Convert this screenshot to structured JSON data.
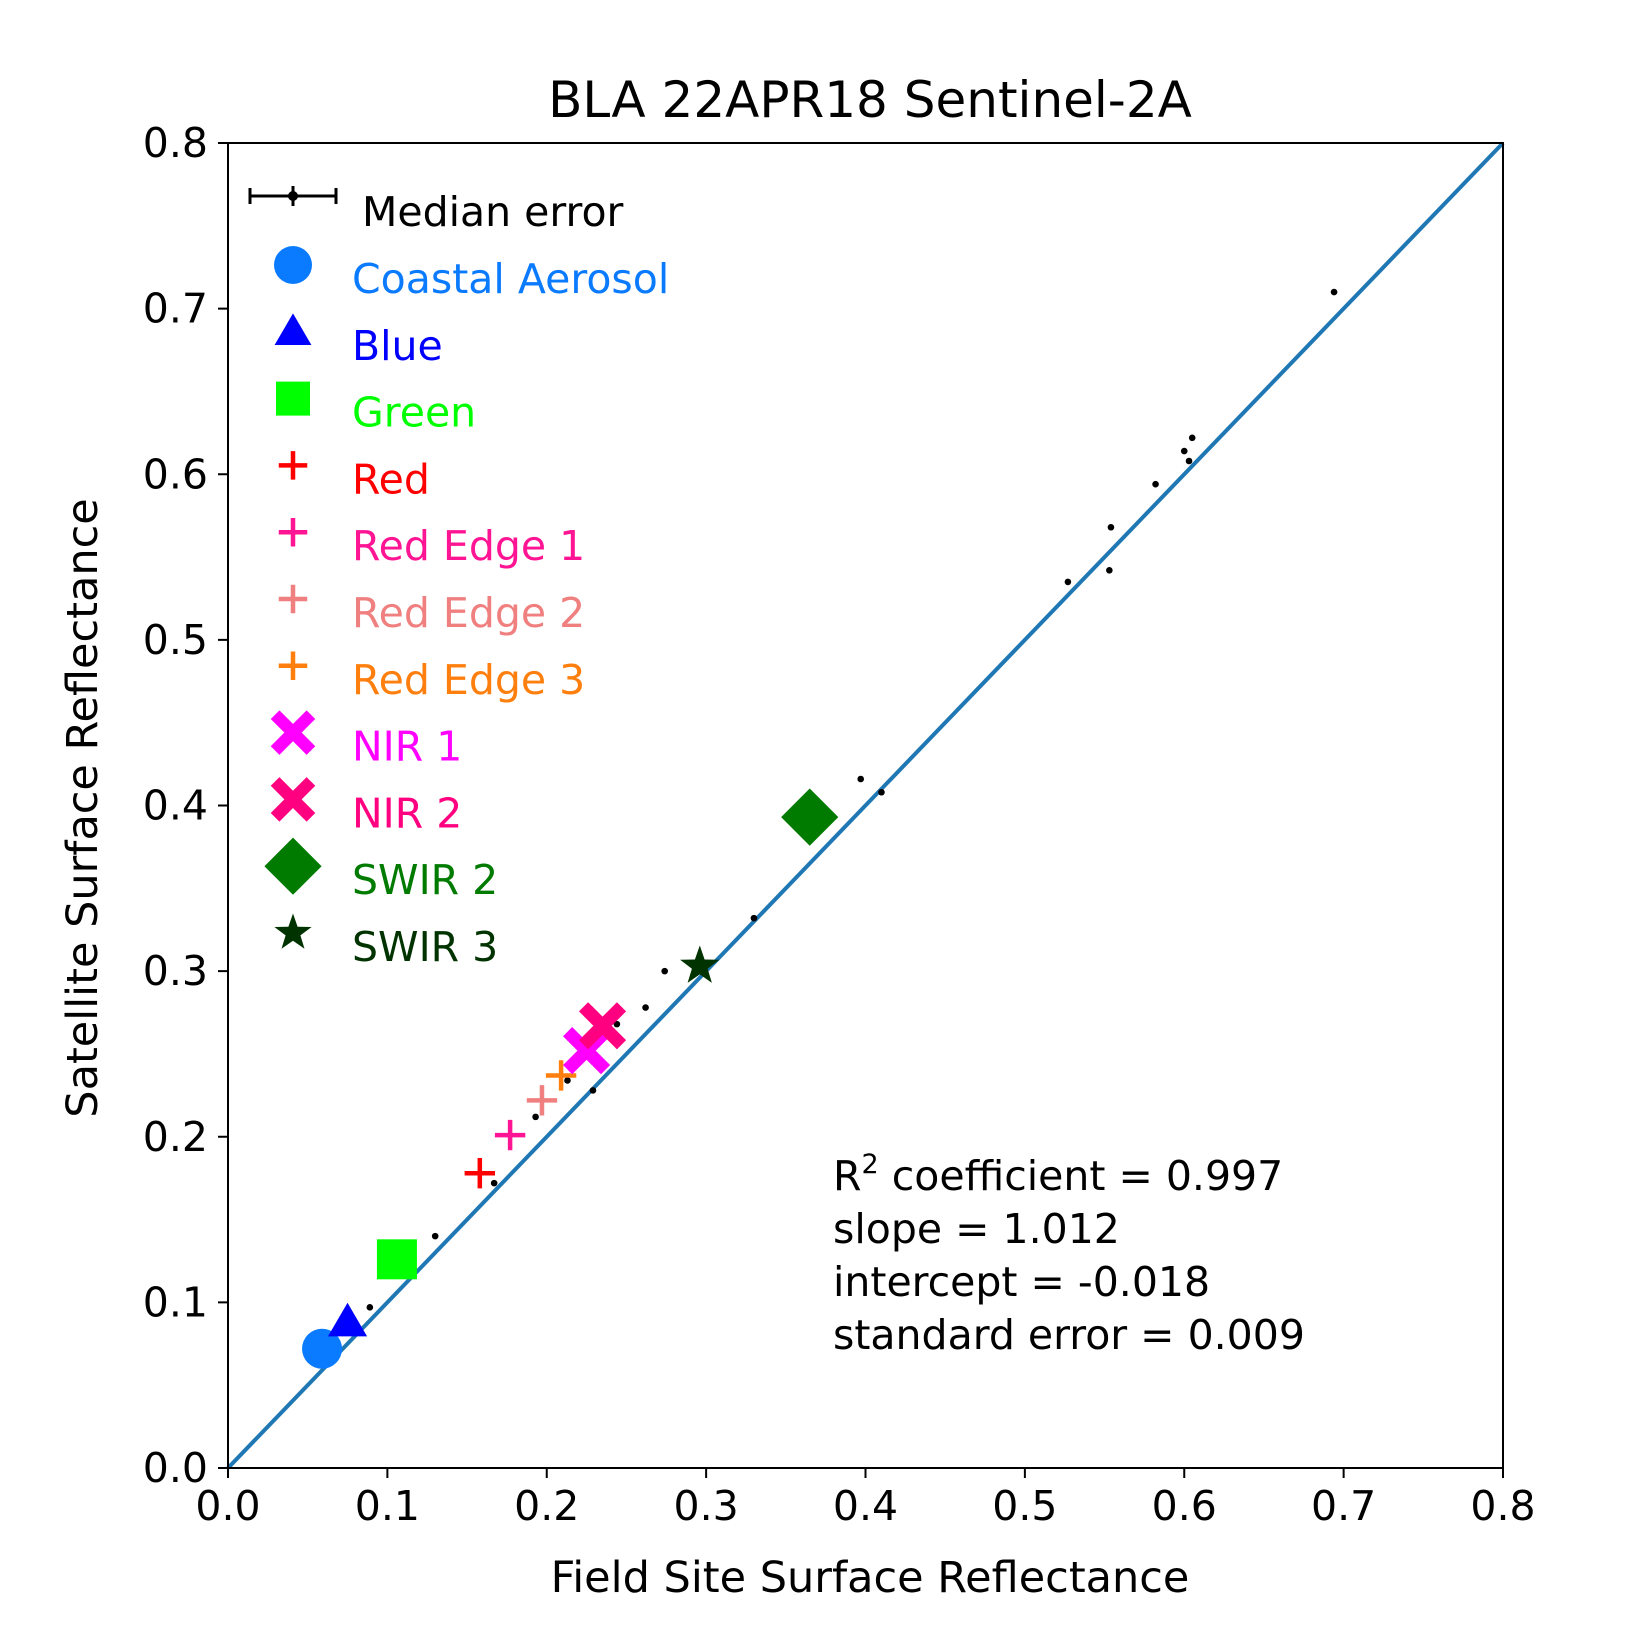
{
  "chart_data": {
    "type": "scatter",
    "title": "BLA 22APR18 Sentinel-2A",
    "xlabel": "Field Site Surface Reflectance",
    "ylabel": "Satellite Surface Reflectance",
    "xlim": [
      0.0,
      0.8
    ],
    "ylim": [
      0.0,
      0.8
    ],
    "xticks": [
      "0.0",
      "0.1",
      "0.2",
      "0.3",
      "0.4",
      "0.5",
      "0.6",
      "0.7",
      "0.8"
    ],
    "yticks": [
      "0.0",
      "0.1",
      "0.2",
      "0.3",
      "0.4",
      "0.5",
      "0.6",
      "0.7",
      "0.8"
    ],
    "grid": false,
    "legend_placement": "top-left",
    "one_to_one_line": {
      "x": [
        0.0,
        0.8
      ],
      "y": [
        0.0,
        0.8
      ],
      "color": "#1f77b4"
    },
    "median_error_label": "Median error",
    "error_points": [
      [
        0.089,
        0.097
      ],
      [
        0.13,
        0.14
      ],
      [
        0.167,
        0.172
      ],
      [
        0.193,
        0.212
      ],
      [
        0.213,
        0.234
      ],
      [
        0.229,
        0.228
      ],
      [
        0.244,
        0.268
      ],
      [
        0.262,
        0.278
      ],
      [
        0.274,
        0.3
      ],
      [
        0.33,
        0.332
      ],
      [
        0.397,
        0.416
      ],
      [
        0.41,
        0.408
      ],
      [
        0.527,
        0.535
      ],
      [
        0.553,
        0.542
      ],
      [
        0.554,
        0.568
      ],
      [
        0.582,
        0.594
      ],
      [
        0.6,
        0.614
      ],
      [
        0.603,
        0.608
      ],
      [
        0.605,
        0.622
      ],
      [
        0.694,
        0.71
      ]
    ],
    "series": [
      {
        "name": "Coastal Aerosol",
        "marker": "circle",
        "color": "#0a7bff",
        "x": [
          0.059
        ],
        "y": [
          0.072
        ]
      },
      {
        "name": "Blue",
        "marker": "triangle",
        "color": "#0000ff",
        "x": [
          0.075
        ],
        "y": [
          0.088
        ]
      },
      {
        "name": "Green",
        "marker": "square",
        "color": "#00ff00",
        "x": [
          0.106
        ],
        "y": [
          0.126
        ]
      },
      {
        "name": "Red",
        "marker": "plus",
        "color": "#ff0000",
        "x": [
          0.158
        ],
        "y": [
          0.178
        ]
      },
      {
        "name": "Red Edge 1",
        "marker": "plus",
        "color": "#ff1493",
        "x": [
          0.177
        ],
        "y": [
          0.201
        ]
      },
      {
        "name": "Red Edge 2",
        "marker": "plus",
        "color": "#f08080",
        "x": [
          0.197
        ],
        "y": [
          0.222
        ]
      },
      {
        "name": "Red Edge 3",
        "marker": "plus",
        "color": "#ff7f0e",
        "x": [
          0.209
        ],
        "y": [
          0.237
        ]
      },
      {
        "name": "NIR 1",
        "marker": "x",
        "color": "#ff00ff",
        "x": [
          0.225
        ],
        "y": [
          0.252
        ]
      },
      {
        "name": "NIR 2",
        "marker": "x",
        "color": "#ff0080",
        "x": [
          0.235
        ],
        "y": [
          0.267
        ]
      },
      {
        "name": "SWIR 2",
        "marker": "diamond",
        "color": "#007b00",
        "x": [
          0.365
        ],
        "y": [
          0.393
        ]
      },
      {
        "name": "SWIR 3",
        "marker": "star",
        "color": "#003300",
        "x": [
          0.296
        ],
        "y": [
          0.303
        ]
      }
    ],
    "stats": {
      "r2_prefix": "R",
      "r2_sup": "2",
      "r2_rest": " coefficient = 0.997",
      "slope": "slope = 1.012",
      "intercept": "intercept = -0.018",
      "std_error": "standard error = 0.009"
    }
  }
}
